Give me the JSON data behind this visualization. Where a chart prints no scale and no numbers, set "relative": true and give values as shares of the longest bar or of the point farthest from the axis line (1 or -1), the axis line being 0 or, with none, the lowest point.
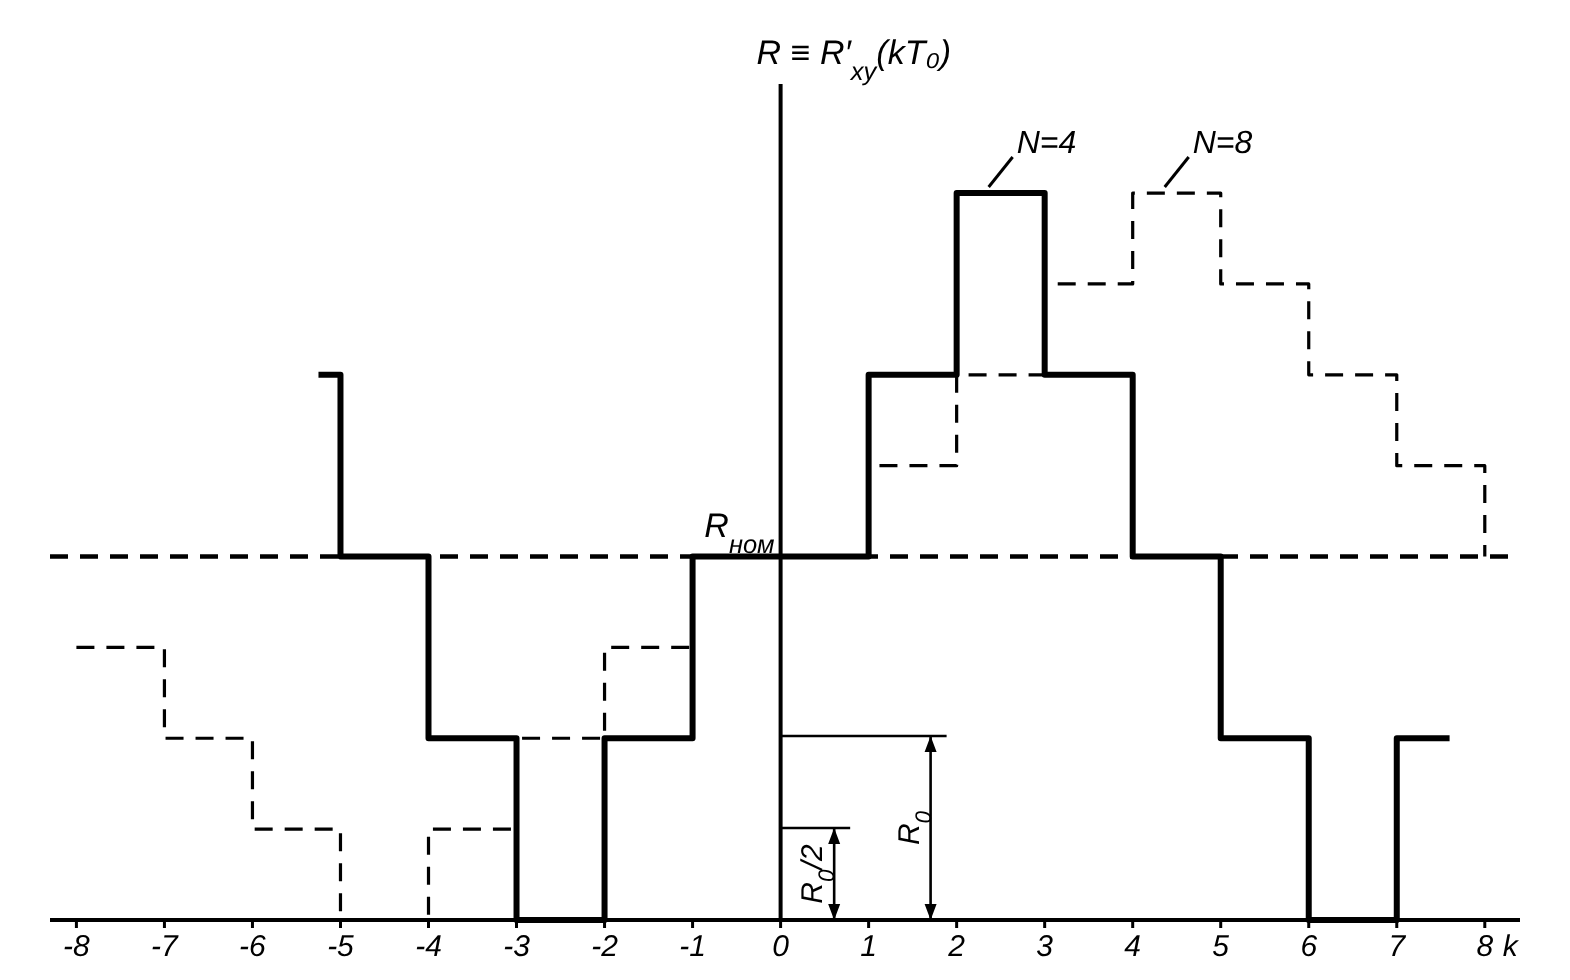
{
  "chart_data": {
    "type": "step",
    "relative": true,
    "ylabel": "R ≡ R′$_{xy}$(kT₀)",
    "xlabel": "k",
    "xlim": [
      -8.3,
      8.4
    ],
    "xticks": [
      -8,
      -7,
      -6,
      -5,
      -4,
      -3,
      -2,
      -1,
      0,
      1,
      2,
      3,
      4,
      5,
      6,
      7,
      8
    ],
    "legend": false,
    "marker": "none",
    "series": [
      {
        "name": "N=4",
        "color": "#000000",
        "line_style": "solid",
        "x": [
          -5.25,
          -5,
          -4,
          -3,
          -2,
          -1,
          1,
          2,
          3,
          4,
          5,
          6,
          7,
          7.6
        ],
        "values": [
          0.75,
          0.5,
          0.25,
          0,
          0.25,
          0.5,
          0.75,
          1,
          0.75,
          0.5,
          0.25,
          0,
          0.25,
          0.25
        ]
      },
      {
        "name": "N=8",
        "color": "#000000",
        "line_style": "dashed",
        "x": [
          -8,
          -7,
          -6,
          -5,
          -4,
          -3,
          -2,
          -1,
          1,
          2,
          3,
          4,
          5,
          6,
          7,
          8
        ],
        "values": [
          0.375,
          0.25,
          0.125,
          0,
          0.125,
          0.25,
          0.375,
          0.5,
          0.625,
          0.75,
          0.875,
          1,
          0.875,
          0.75,
          0.625,
          0.5
        ]
      }
    ],
    "ref_lines": [
      {
        "axis": "y",
        "value": 0.5,
        "label": "R$_{ном}$",
        "color": "#000000",
        "line_style": "dashed"
      }
    ],
    "annotations": [
      "R$_{0}$",
      "R$_{0}$/2"
    ]
  }
}
